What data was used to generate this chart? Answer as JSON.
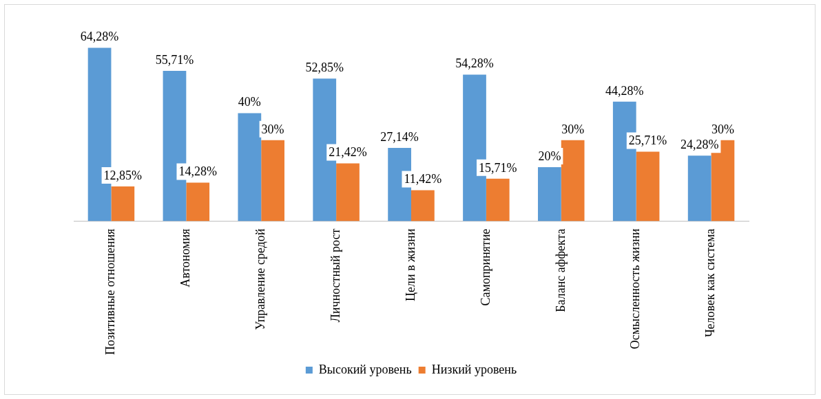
{
  "chart_data": {
    "type": "bar",
    "categories": [
      "Позитивные отношения",
      "Автономия",
      "Управление средой",
      "Личностный рост",
      "Цели в жизни",
      "Самопринятие",
      "Баланс аффекта",
      "Осмысленность жизни",
      "Человек как система"
    ],
    "series": [
      {
        "name": "Высокий уровень",
        "color": "#5b9bd5",
        "values": [
          64.28,
          55.71,
          40,
          52.85,
          27.14,
          54.28,
          20,
          44.28,
          24.28
        ],
        "value_labels": [
          "64,28%",
          "55,71%",
          "40%",
          "52,85%",
          "27,14%",
          "54,28%",
          "20%",
          "44,28%",
          "24,28%"
        ]
      },
      {
        "name": "Низкий уровень",
        "color": "#ed7d31",
        "values": [
          12.85,
          14.28,
          30,
          21.42,
          11.42,
          15.71,
          30,
          25.71,
          30
        ],
        "value_labels": [
          "12,85%",
          "14,28%",
          "30%",
          "21,42%",
          "11,42%",
          "15,71%",
          "30%",
          "25,71%",
          "30%"
        ]
      }
    ],
    "legend": "bottom"
  }
}
